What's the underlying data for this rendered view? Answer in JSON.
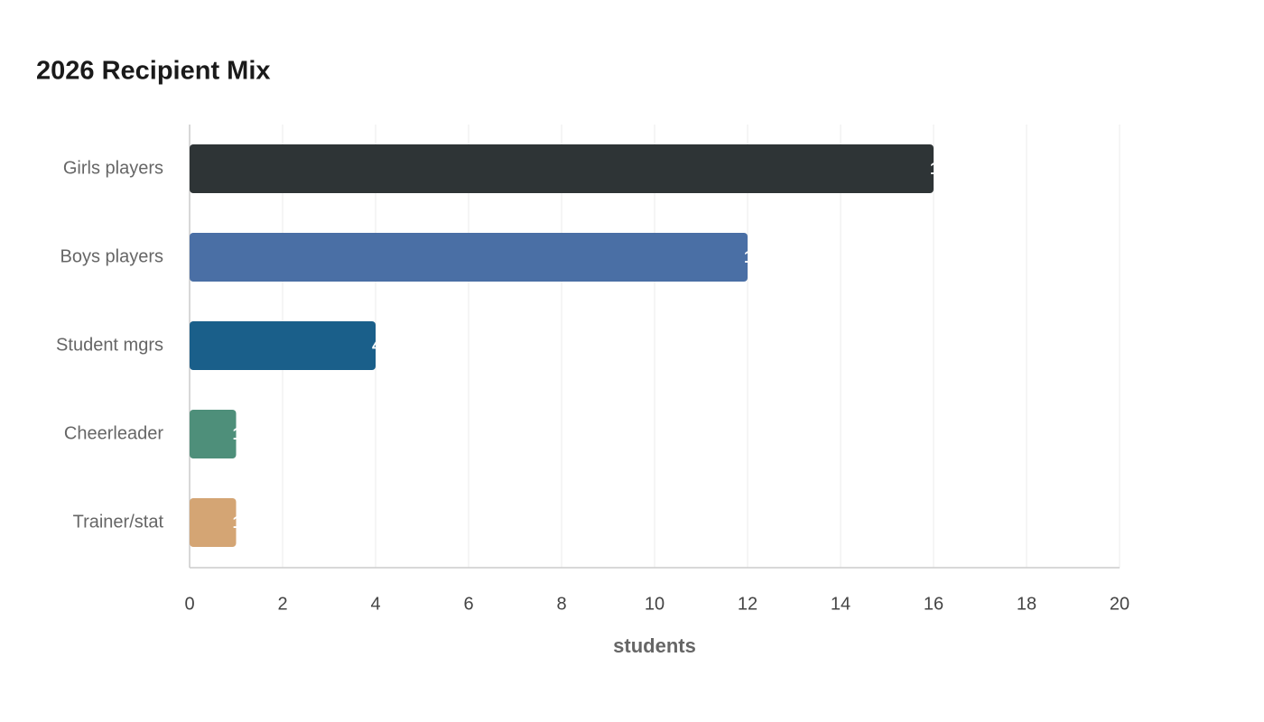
{
  "chart_data": {
    "type": "bar",
    "orientation": "horizontal",
    "title": "2026 Recipient Mix",
    "categories": [
      "Girls players",
      "Boys players",
      "Student mgrs",
      "Cheerleader",
      "Trainer/stat"
    ],
    "values": [
      16,
      12,
      4,
      1,
      1
    ],
    "colors": [
      "#2e3436",
      "#4a6fa5",
      "#1a5f8a",
      "#4e8f7a",
      "#d4a574"
    ],
    "xlabel": "students",
    "xlim": [
      0,
      20
    ],
    "xticks": [
      0,
      2,
      4,
      6,
      8,
      10,
      12,
      14,
      16,
      18,
      20
    ],
    "grid": true
  }
}
